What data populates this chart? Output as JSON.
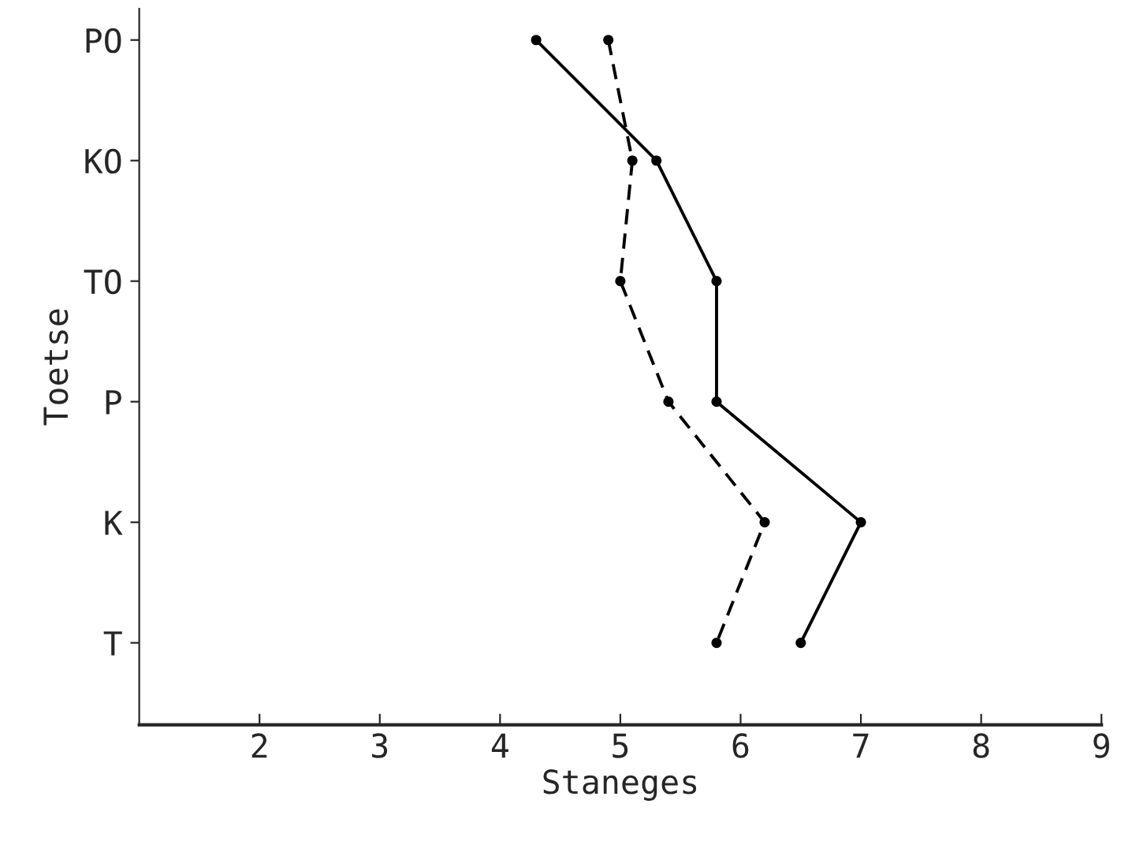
{
  "chart_data": {
    "type": "line",
    "orientation": "horizontal",
    "xlabel": "Staneges",
    "ylabel": "Toetse",
    "categories": [
      "PO",
      "KO",
      "TO",
      "P",
      "K",
      "T"
    ],
    "series": [
      {
        "color": "#000000",
        "line_style": "solid",
        "values": [
          4.3,
          5.3,
          5.8,
          5.8,
          7.0,
          6.5
        ]
      },
      {
        "color": "#000000",
        "line_style": "dashed",
        "values": [
          4.9,
          5.1,
          5.0,
          5.4,
          6.2,
          5.8
        ]
      }
    ],
    "xlim": [
      1,
      9
    ],
    "xticks": [
      2,
      3,
      4,
      5,
      6,
      7,
      8,
      9
    ],
    "marker": "circle",
    "grid": false
  }
}
